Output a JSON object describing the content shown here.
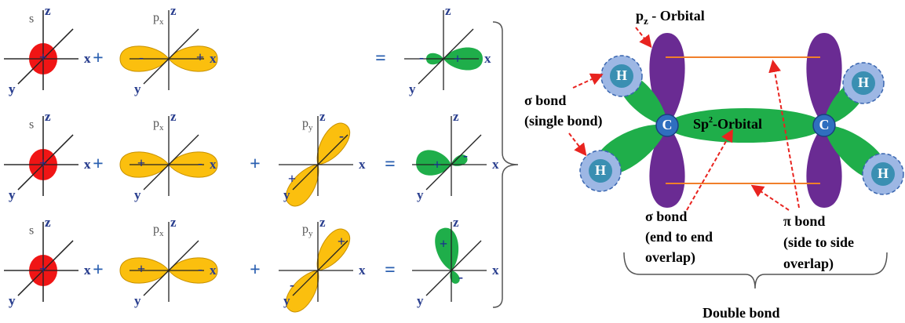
{
  "hybridization": {
    "axes": {
      "x": "x",
      "y": "y",
      "z": "z"
    },
    "orbitals": {
      "s": "s",
      "p": "p"
    },
    "operators": {
      "plus": "+",
      "equals": "="
    },
    "signs": {
      "positive": "+",
      "negative": "-"
    }
  },
  "double_bond": {
    "title": {
      "main": "p",
      "sub": "z",
      "rest": " - Orbital"
    },
    "atoms": {
      "hydrogen": "H",
      "carbon": "C"
    },
    "sp2": {
      "main": "Sp",
      "sup": "2",
      "rest": "-Orbital"
    },
    "sigma_single": [
      "σ bond",
      "(single bond)"
    ],
    "sigma_end": [
      "σ bond",
      "(end to end",
      "overlap)"
    ],
    "pi_side": [
      "π bond",
      "(side to side",
      "overlap)"
    ],
    "caption": "Double bond"
  }
}
